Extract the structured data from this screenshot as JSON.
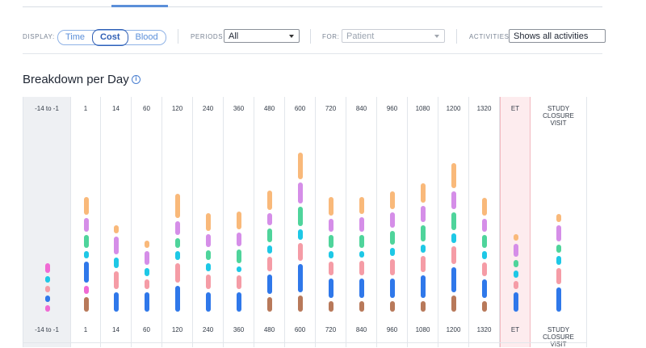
{
  "filters": {
    "display_label": "DISPLAY:",
    "display_options": [
      "Time",
      "Cost",
      "Blood"
    ],
    "display_selected": "Cost",
    "periods_label": "PERIODS:",
    "periods_value": "All",
    "for_label": "FOR:",
    "for_value": "Patient",
    "activities_label": "ACTIVITIES:",
    "activities_value": "Shows all activities"
  },
  "section": {
    "title": "Breakdown per Day",
    "info_icon": "info-circle-icon"
  },
  "colors": {
    "orange": "#f9b97a",
    "purple": "#d58ee8",
    "green": "#4fd49b",
    "cyan": "#1ec8e6",
    "pink": "#f59ca6",
    "blue": "#2f78ea",
    "brown": "#b8795a",
    "magenta": "#f06ad4"
  },
  "chart_data": {
    "type": "bar",
    "categories": [
      "-14 to -1",
      "1",
      "14",
      "60",
      "120",
      "240",
      "360",
      "480",
      "600",
      "720",
      "840",
      "960",
      "1080",
      "1200",
      "1320",
      "ET",
      "STUDY CLOSURE VISIT"
    ],
    "stacks": [
      [
        [
          "magenta",
          8
        ],
        [
          "blue",
          8
        ],
        [
          "pink",
          8
        ],
        [
          "cyan",
          8
        ],
        [
          "magenta",
          12
        ]
      ],
      [
        [
          "brown",
          18
        ],
        [
          "magenta",
          10
        ],
        [
          "blue",
          26
        ],
        [
          "cyan",
          9
        ],
        [
          "green",
          16
        ],
        [
          "purple",
          17
        ],
        [
          "orange",
          22
        ]
      ],
      [
        [
          "blue",
          24
        ],
        [
          "pink",
          22
        ],
        [
          "cyan",
          13
        ],
        [
          "purple",
          22
        ],
        [
          "orange",
          10
        ]
      ],
      [
        [
          "blue",
          24
        ],
        [
          "pink",
          12
        ],
        [
          "cyan",
          10
        ],
        [
          "purple",
          17
        ],
        [
          "orange",
          9
        ]
      ],
      [
        [
          "blue",
          32
        ],
        [
          "pink",
          24
        ],
        [
          "cyan",
          11
        ],
        [
          "green",
          12
        ],
        [
          "purple",
          17
        ],
        [
          "orange",
          30
        ]
      ],
      [
        [
          "blue",
          24
        ],
        [
          "pink",
          18
        ],
        [
          "cyan",
          10
        ],
        [
          "green",
          12
        ],
        [
          "purple",
          16
        ],
        [
          "orange",
          22
        ]
      ],
      [
        [
          "blue",
          24
        ],
        [
          "pink",
          17
        ],
        [
          "cyan",
          7
        ],
        [
          "green",
          17
        ],
        [
          "purple",
          17
        ],
        [
          "orange",
          22
        ]
      ],
      [
        [
          "brown",
          18
        ],
        [
          "blue",
          24
        ],
        [
          "pink",
          18
        ],
        [
          "cyan",
          10
        ],
        [
          "green",
          17
        ],
        [
          "purple",
          15
        ],
        [
          "orange",
          24
        ]
      ],
      [
        [
          "brown",
          20
        ],
        [
          "blue",
          35
        ],
        [
          "pink",
          22
        ],
        [
          "cyan",
          13
        ],
        [
          "green",
          24
        ],
        [
          "purple",
          26
        ],
        [
          "orange",
          33
        ]
      ],
      [
        [
          "brown",
          13
        ],
        [
          "blue",
          24
        ],
        [
          "pink",
          17
        ],
        [
          "cyan",
          9
        ],
        [
          "green",
          16
        ],
        [
          "purple",
          16
        ],
        [
          "orange",
          23
        ]
      ],
      [
        [
          "brown",
          13
        ],
        [
          "blue",
          24
        ],
        [
          "pink",
          18
        ],
        [
          "cyan",
          8
        ],
        [
          "green",
          16
        ],
        [
          "purple",
          18
        ],
        [
          "orange",
          21
        ]
      ],
      [
        [
          "brown",
          13
        ],
        [
          "blue",
          24
        ],
        [
          "pink",
          20
        ],
        [
          "cyan",
          10
        ],
        [
          "green",
          17
        ],
        [
          "purple",
          19
        ],
        [
          "orange",
          22
        ]
      ],
      [
        [
          "brown",
          13
        ],
        [
          "blue",
          28
        ],
        [
          "pink",
          20
        ],
        [
          "cyan",
          10
        ],
        [
          "green",
          20
        ],
        [
          "purple",
          20
        ],
        [
          "orange",
          24
        ]
      ],
      [
        [
          "brown",
          20
        ],
        [
          "blue",
          31
        ],
        [
          "pink",
          22
        ],
        [
          "cyan",
          12
        ],
        [
          "green",
          22
        ],
        [
          "purple",
          22
        ],
        [
          "orange",
          31
        ]
      ],
      [
        [
          "brown",
          13
        ],
        [
          "blue",
          23
        ],
        [
          "pink",
          17
        ],
        [
          "cyan",
          10
        ],
        [
          "green",
          16
        ],
        [
          "purple",
          16
        ],
        [
          "orange",
          22
        ]
      ],
      [
        [
          "blue",
          24
        ],
        [
          "pink",
          10
        ],
        [
          "cyan",
          9
        ],
        [
          "green",
          9
        ],
        [
          "purple",
          16
        ],
        [
          "orange",
          8
        ]
      ],
      [
        [
          "blue",
          30
        ],
        [
          "pink",
          20
        ],
        [
          "cyan",
          11
        ],
        [
          "green",
          10
        ],
        [
          "purple",
          20
        ],
        [
          "orange",
          10
        ]
      ]
    ]
  }
}
